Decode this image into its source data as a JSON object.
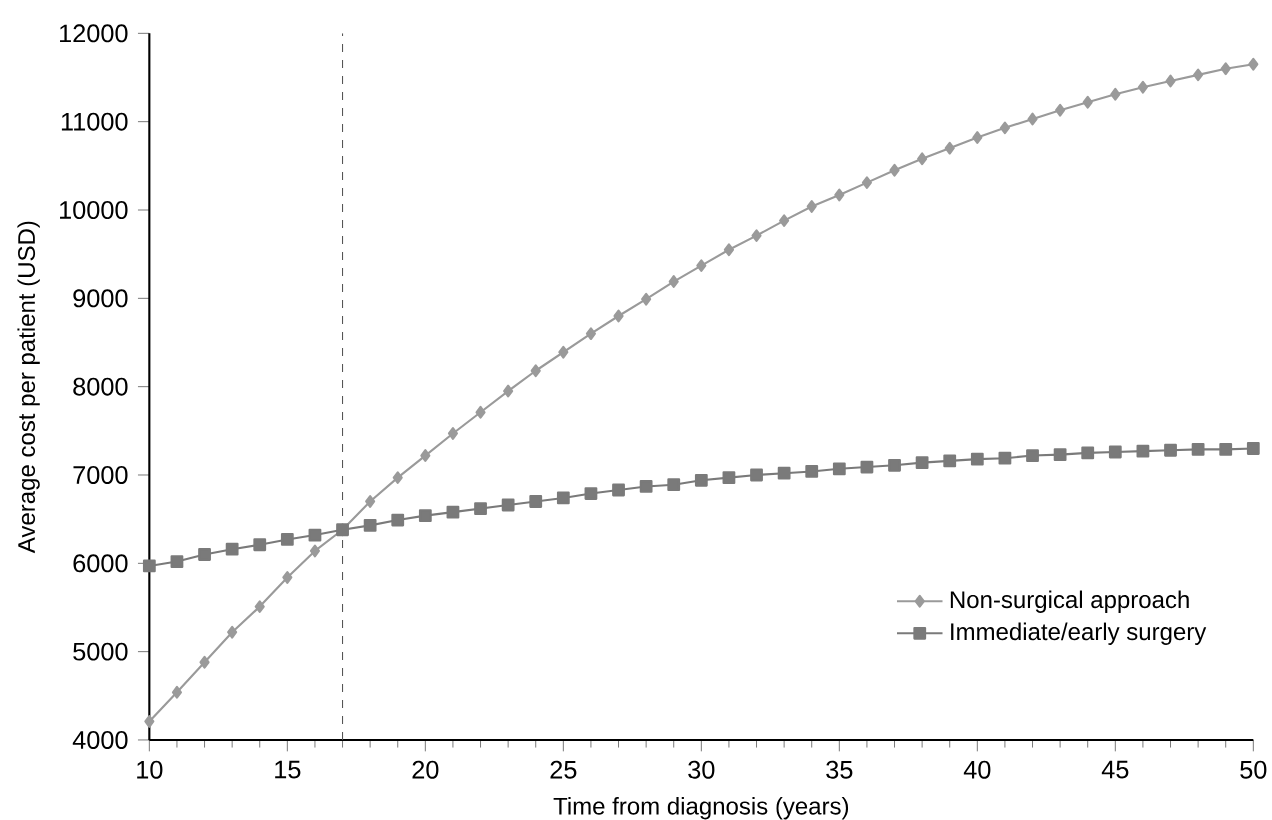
{
  "chart_data": {
    "type": "line",
    "xlabel": "Time from diagnosis (years)",
    "ylabel": "Average cost per patient (USD)",
    "x": [
      10,
      11,
      12,
      13,
      14,
      15,
      16,
      17,
      18,
      19,
      20,
      21,
      22,
      23,
      24,
      25,
      26,
      27,
      28,
      29,
      30,
      31,
      32,
      33,
      34,
      35,
      36,
      37,
      38,
      39,
      40,
      41,
      42,
      43,
      44,
      45,
      46,
      47,
      48,
      49,
      50
    ],
    "series": [
      {
        "name": "Non-surgical approach",
        "color": "#9a9a9a",
        "marker": "diamond",
        "values": [
          4210,
          4540,
          4880,
          5220,
          5510,
          5840,
          6140,
          6380,
          6700,
          6970,
          7220,
          7470,
          7710,
          7950,
          8180,
          8390,
          8600,
          8800,
          8990,
          9190,
          9370,
          9550,
          9710,
          9880,
          10040,
          10170,
          10310,
          10450,
          10580,
          10700,
          10820,
          10930,
          11030,
          11130,
          11220,
          11310,
          11390,
          11460,
          11530,
          11600,
          11650
        ]
      },
      {
        "name": "Immediate/early surgery",
        "color": "#7a7a7a",
        "marker": "square",
        "values": [
          5970,
          6020,
          6100,
          6160,
          6210,
          6270,
          6320,
          6380,
          6430,
          6490,
          6540,
          6580,
          6620,
          6660,
          6700,
          6740,
          6790,
          6830,
          6870,
          6890,
          6940,
          6970,
          7000,
          7020,
          7040,
          7070,
          7090,
          7110,
          7140,
          7160,
          7180,
          7190,
          7220,
          7230,
          7250,
          7260,
          7270,
          7280,
          7290,
          7290,
          7300
        ]
      }
    ],
    "xlim": [
      10,
      50
    ],
    "xticks": [
      10,
      15,
      20,
      25,
      30,
      35,
      40,
      45,
      50
    ],
    "ylim": [
      4000,
      12000
    ],
    "yticks": [
      4000,
      5000,
      6000,
      7000,
      8000,
      9000,
      10000,
      11000,
      12000
    ],
    "ref_lines": [
      {
        "axis": "x",
        "value": 17,
        "color": "#555555",
        "line_style": "dashed"
      }
    ],
    "grid": false,
    "legend": "bottom right",
    "line_style": "solid"
  }
}
